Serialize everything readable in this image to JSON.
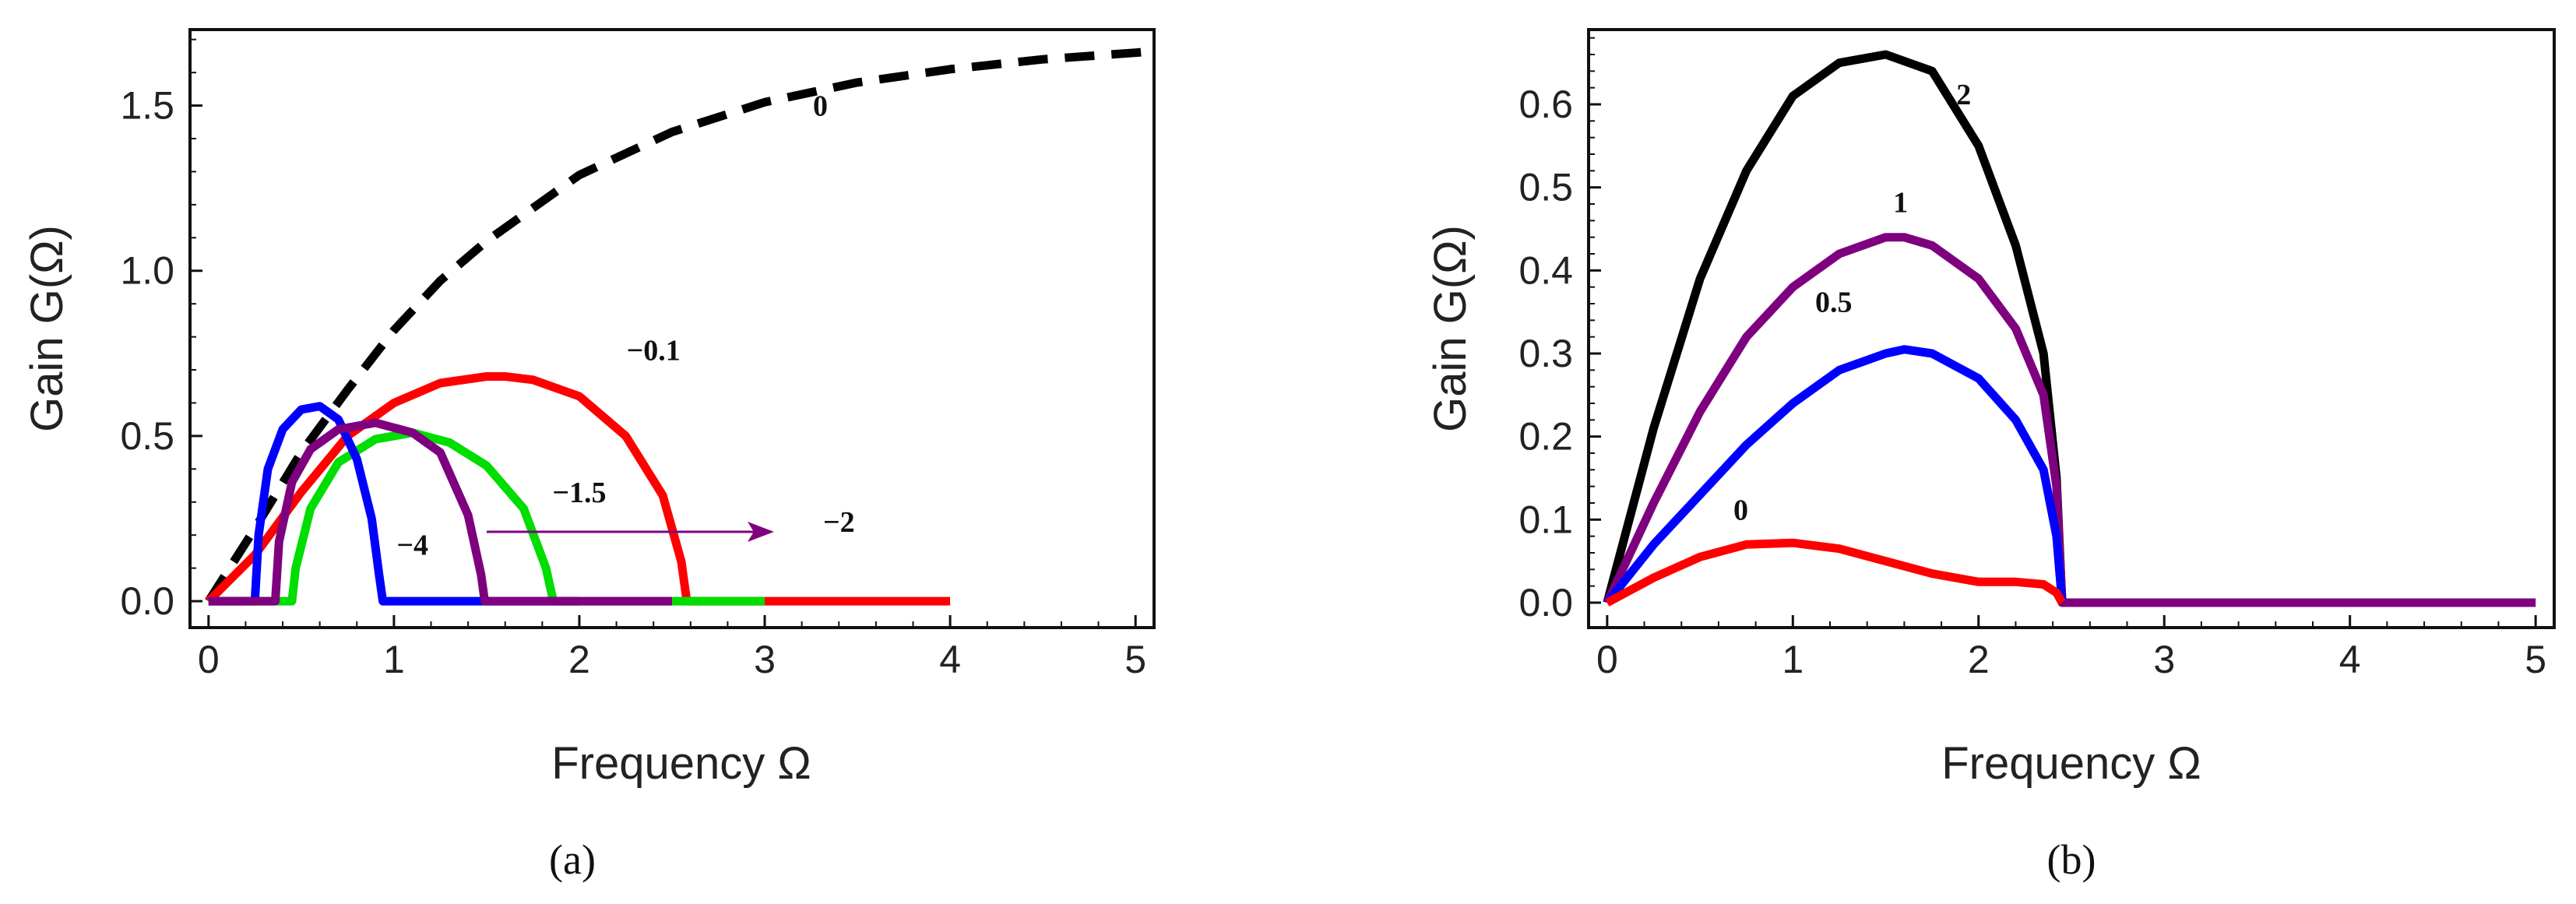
{
  "chart_data": [
    {
      "type": "line",
      "panel_label": "(a)",
      "xlabel": "Frequency Ω",
      "ylabel": "Gain G(Ω)",
      "xlim": [
        -0.1,
        5.1
      ],
      "ylim": [
        -0.08,
        1.73
      ],
      "xticks": [
        0,
        1,
        2,
        3,
        4,
        5
      ],
      "xtick_labels": [
        "0",
        "1",
        "2",
        "3",
        "4",
        "5"
      ],
      "yticks": [
        0,
        0.5,
        1.0,
        1.5
      ],
      "ytick_labels": [
        "0.0",
        "0.5",
        "1.0",
        "1.5"
      ],
      "series": [
        {
          "name": "0",
          "color": "#000000",
          "dashed": true,
          "x": [
            0,
            0.25,
            0.5,
            0.75,
            1.0,
            1.25,
            1.5,
            2.0,
            2.5,
            3.0,
            3.5,
            4.0,
            4.5,
            5.0,
            5.1
          ],
          "y": [
            0,
            0.22,
            0.45,
            0.64,
            0.82,
            0.97,
            1.09,
            1.29,
            1.42,
            1.51,
            1.57,
            1.61,
            1.64,
            1.66,
            1.665
          ]
        },
        {
          "name": "−0.1",
          "color": "#ff0000",
          "dashed": false,
          "x": [
            0,
            0.25,
            0.5,
            0.75,
            1.0,
            1.25,
            1.5,
            1.6,
            1.75,
            2.0,
            2.25,
            2.45,
            2.55,
            2.58,
            3.0,
            3.5,
            4.0
          ],
          "y": [
            0,
            0.14,
            0.33,
            0.5,
            0.6,
            0.66,
            0.68,
            0.68,
            0.67,
            0.62,
            0.5,
            0.32,
            0.12,
            0,
            0,
            0,
            0
          ]
        },
        {
          "name": "−1.5",
          "color": "#00dd00",
          "dashed": false,
          "x": [
            0,
            0.45,
            0.47,
            0.55,
            0.7,
            0.9,
            1.1,
            1.3,
            1.5,
            1.7,
            1.82,
            1.86,
            2.5,
            3.0
          ],
          "y": [
            0,
            0,
            0.1,
            0.28,
            0.42,
            0.49,
            0.51,
            0.48,
            0.41,
            0.28,
            0.1,
            0,
            0,
            0
          ]
        },
        {
          "name": "−4",
          "color": "#0000ff",
          "dashed": false,
          "x": [
            0,
            0.25,
            0.27,
            0.32,
            0.4,
            0.5,
            0.6,
            0.7,
            0.8,
            0.88,
            0.92,
            0.94,
            1.5,
            2.0
          ],
          "y": [
            0,
            0,
            0.2,
            0.4,
            0.52,
            0.58,
            0.59,
            0.55,
            0.43,
            0.25,
            0.08,
            0,
            0,
            0
          ]
        },
        {
          "name": "−2",
          "color": "#7f007f",
          "dashed": false,
          "x": [
            0,
            0.36,
            0.38,
            0.45,
            0.55,
            0.7,
            0.9,
            1.1,
            1.25,
            1.4,
            1.47,
            1.49,
            2.0,
            2.5
          ],
          "y": [
            0,
            0,
            0.18,
            0.36,
            0.46,
            0.52,
            0.54,
            0.51,
            0.45,
            0.26,
            0.08,
            0,
            0,
            0
          ]
        }
      ],
      "annotations": [
        {
          "text": "0",
          "x": 3.3,
          "y": 1.47
        },
        {
          "text": "−0.1",
          "x": 2.4,
          "y": 0.73
        },
        {
          "text": "−1.5",
          "x": 2.0,
          "y": 0.3
        },
        {
          "text": "−4",
          "x": 1.1,
          "y": 0.14
        },
        {
          "text": "−2",
          "x": 3.4,
          "y": 0.21
        }
      ],
      "arrow": {
        "color": "#7f007f",
        "from": [
          1.5,
          0.21
        ],
        "to": [
          3.05,
          0.21
        ]
      }
    },
    {
      "type": "line",
      "panel_label": "(b)",
      "xlabel": "Frequency Ω",
      "ylabel": "Gain G(Ω)",
      "xlim": [
        -0.1,
        5.1
      ],
      "ylim": [
        -0.03,
        0.69
      ],
      "xticks": [
        0,
        1,
        2,
        3,
        4,
        5
      ],
      "xtick_labels": [
        "0",
        "1",
        "2",
        "3",
        "4",
        "5"
      ],
      "yticks": [
        0,
        0.1,
        0.2,
        0.3,
        0.4,
        0.5,
        0.6
      ],
      "ytick_labels": [
        "0.0",
        "0.1",
        "0.2",
        "0.3",
        "0.4",
        "0.5",
        "0.6"
      ],
      "series": [
        {
          "name": "2",
          "color": "#000000",
          "dashed": false,
          "x": [
            0,
            0.25,
            0.5,
            0.75,
            1.0,
            1.25,
            1.5,
            1.75,
            2.0,
            2.2,
            2.35,
            2.42,
            2.45,
            3.0
          ],
          "y": [
            0,
            0.21,
            0.39,
            0.52,
            0.61,
            0.65,
            0.66,
            0.64,
            0.55,
            0.43,
            0.3,
            0.15,
            0,
            0
          ]
        },
        {
          "name": "1",
          "color": "#7f007f",
          "dashed": false,
          "x": [
            0,
            0.25,
            0.5,
            0.75,
            1.0,
            1.25,
            1.5,
            1.6,
            1.75,
            2.0,
            2.2,
            2.35,
            2.42,
            2.45,
            3.0,
            4.0,
            5.0
          ],
          "y": [
            0,
            0.12,
            0.23,
            0.32,
            0.38,
            0.42,
            0.44,
            0.44,
            0.43,
            0.39,
            0.33,
            0.25,
            0.14,
            0,
            0,
            0,
            0
          ]
        },
        {
          "name": "0.5",
          "color": "#0000ff",
          "dashed": false,
          "x": [
            0,
            0.25,
            0.5,
            0.75,
            1.0,
            1.25,
            1.5,
            1.6,
            1.75,
            2.0,
            2.2,
            2.35,
            2.42,
            2.45
          ],
          "y": [
            0,
            0.07,
            0.13,
            0.19,
            0.24,
            0.28,
            0.3,
            0.305,
            0.3,
            0.27,
            0.22,
            0.16,
            0.08,
            0
          ]
        },
        {
          "name": "0",
          "color": "#ff0000",
          "dashed": false,
          "x": [
            0,
            0.25,
            0.5,
            0.75,
            1.0,
            1.25,
            1.5,
            1.75,
            2.0,
            2.2,
            2.35,
            2.42,
            2.45
          ],
          "y": [
            0,
            0.03,
            0.055,
            0.07,
            0.072,
            0.065,
            0.05,
            0.035,
            0.025,
            0.025,
            0.022,
            0.012,
            0
          ]
        }
      ],
      "annotations": [
        {
          "text": "2",
          "x": 1.92,
          "y": 0.6
        },
        {
          "text": "1",
          "x": 1.58,
          "y": 0.47
        },
        {
          "text": "0.5",
          "x": 1.22,
          "y": 0.35
        },
        {
          "text": "0",
          "x": 0.72,
          "y": 0.1
        }
      ]
    }
  ]
}
